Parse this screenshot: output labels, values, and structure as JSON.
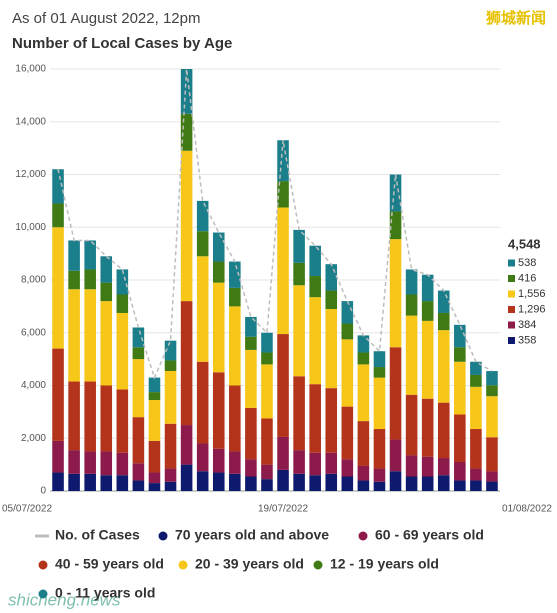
{
  "chart_data": {
    "type": "bar",
    "stacked": true,
    "subtitle": "As of 01 August 2022, 12pm",
    "title": "Number of Local Cases by Age",
    "watermark": "狮城新闻",
    "source_mark": "shicheng.news",
    "categories": [
      "05/07/2022",
      null,
      null,
      null,
      null,
      null,
      null,
      null,
      null,
      null,
      null,
      null,
      null,
      null,
      "19/07/2022",
      null,
      null,
      null,
      null,
      null,
      null,
      null,
      null,
      null,
      null,
      null,
      null,
      "01/08/2022"
    ],
    "ylim": [
      0,
      16000
    ],
    "yticks": [
      0,
      {
        "value": 2000,
        "label": "2,000"
      },
      {
        "value": 4000,
        "label": "4,000"
      },
      {
        "value": 6000,
        "label": "6,000"
      },
      {
        "value": 8000,
        "label": "8,000"
      },
      {
        "value": 10000,
        "label": "10,000"
      },
      {
        "value": 12000,
        "label": "12,000"
      },
      {
        "value": 14000,
        "label": "14,000"
      },
      {
        "value": 16000,
        "label": "16,000"
      }
    ],
    "grid": true,
    "series": [
      {
        "name": "No. of Cases",
        "type": "line",
        "color": "#bdbdbd",
        "values": [
          12200,
          9500,
          9500,
          8900,
          8400,
          6200,
          4300,
          5700,
          16000,
          11000,
          9800,
          8700,
          6600,
          6000,
          13300,
          9900,
          9300,
          8600,
          7200,
          5900,
          5300,
          12000,
          8400,
          8200,
          7600,
          6300,
          4900,
          4548
        ]
      },
      {
        "name": "70 years old and above",
        "color": "#0e1a6e",
        "values": [
          700,
          650,
          650,
          600,
          600,
          400,
          300,
          350,
          1000,
          750,
          700,
          650,
          550,
          450,
          800,
          650,
          600,
          650,
          550,
          400,
          350,
          750,
          550,
          550,
          600,
          400,
          400,
          358
        ]
      },
      {
        "name": "60 - 69 years old",
        "color": "#8c1b4b",
        "values": [
          1200,
          900,
          850,
          900,
          850,
          650,
          400,
          500,
          1500,
          1050,
          900,
          850,
          650,
          550,
          1250,
          900,
          850,
          800,
          650,
          550,
          500,
          1200,
          800,
          750,
          650,
          700,
          450,
          384
        ]
      },
      {
        "name": "40 - 59 years old",
        "color": "#b3331b",
        "values": [
          3500,
          2600,
          2650,
          2500,
          2400,
          1750,
          1200,
          1700,
          4700,
          3100,
          2900,
          2500,
          1950,
          1750,
          3900,
          2800,
          2600,
          2450,
          2000,
          1700,
          1500,
          3500,
          2300,
          2200,
          2100,
          1800,
          1500,
          1296
        ]
      },
      {
        "name": "20 - 39 years old",
        "color": "#f6c619",
        "values": [
          4600,
          3500,
          3500,
          3200,
          2900,
          2200,
          1550,
          2000,
          5700,
          4000,
          3400,
          3000,
          2200,
          2050,
          4800,
          3450,
          3300,
          3000,
          2550,
          2150,
          1950,
          4100,
          3000,
          2950,
          2750,
          2000,
          1600,
          1556
        ]
      },
      {
        "name": "12 - 19 years old",
        "color": "#3f7a14",
        "values": [
          900,
          700,
          750,
          700,
          700,
          450,
          300,
          400,
          1400,
          950,
          800,
          700,
          500,
          450,
          1000,
          850,
          800,
          700,
          600,
          450,
          400,
          1050,
          800,
          750,
          650,
          550,
          450,
          416
        ]
      },
      {
        "name": "0 - 11 years old",
        "color": "#1b7f8b",
        "values": [
          1300,
          1150,
          1100,
          1000,
          950,
          750,
          550,
          750,
          1700,
          1150,
          1100,
          1000,
          750,
          750,
          1550,
          1250,
          1150,
          1000,
          850,
          650,
          600,
          1400,
          950,
          1000,
          850,
          850,
          500,
          538
        ]
      }
    ],
    "side_panel": {
      "total": {
        "value": 4548,
        "label": "4,548"
      },
      "items": [
        {
          "value": 538,
          "label": "538"
        },
        {
          "value": 416,
          "label": "416"
        },
        {
          "value": 1556,
          "label": "1,556"
        },
        {
          "value": 1296,
          "label": "1,296"
        },
        {
          "value": 384,
          "label": "384"
        },
        {
          "value": 358,
          "label": "358"
        }
      ]
    }
  }
}
